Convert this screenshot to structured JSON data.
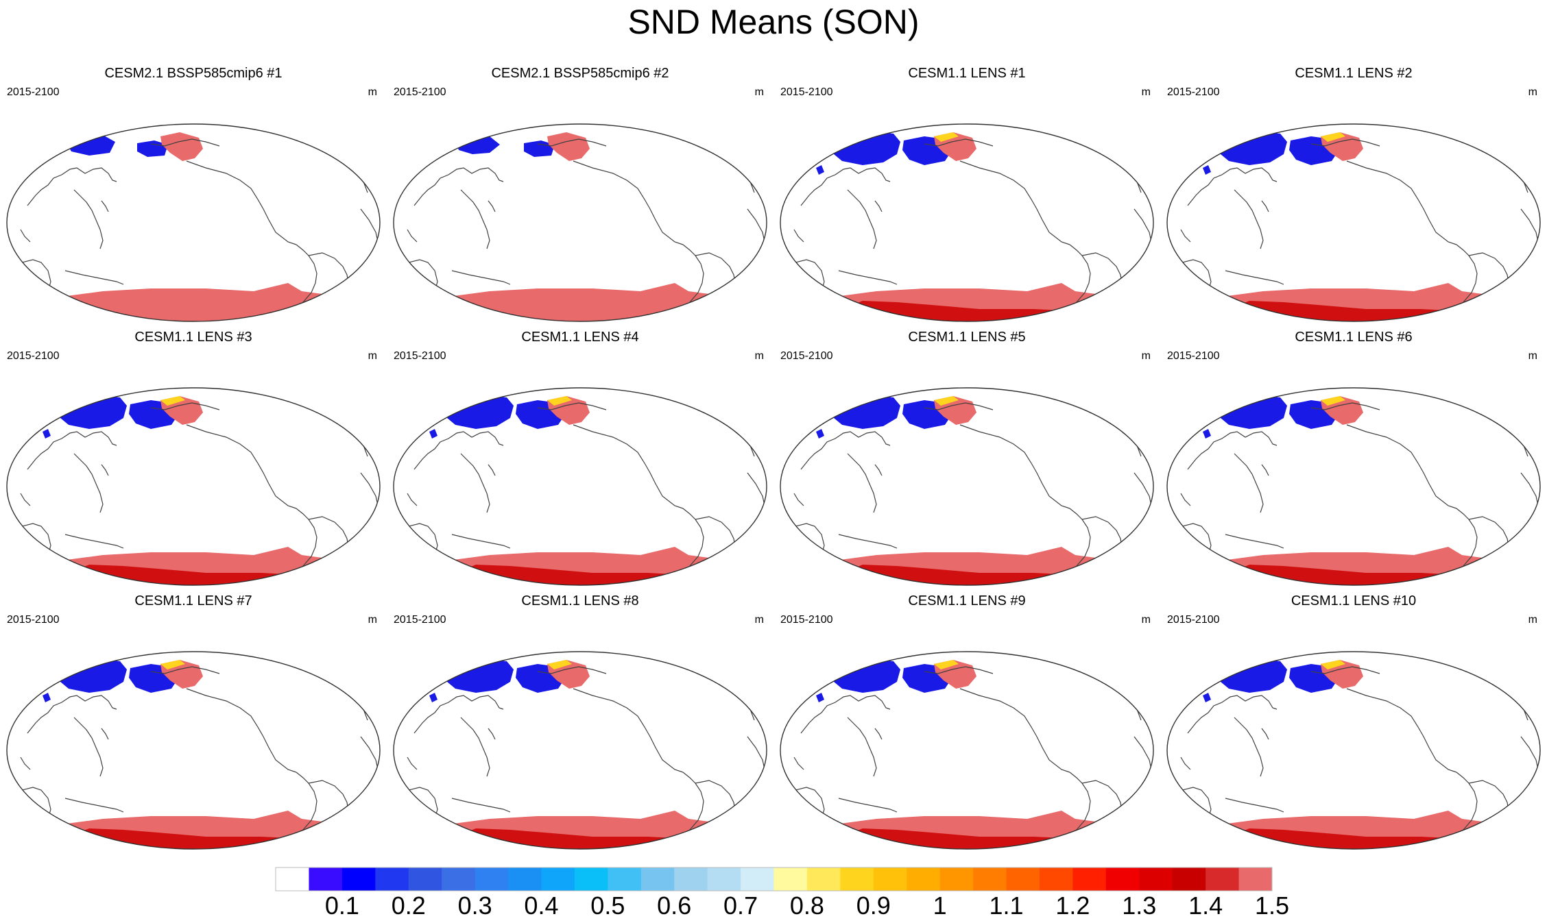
{
  "title": "SND Means (SON)",
  "panel_period": "2015-2100",
  "panel_units": "m",
  "panels": [
    {
      "title": "CESM2.1 BSSP585cmip6 #1",
      "antarctic_max": false,
      "arctic": "moderate"
    },
    {
      "title": "CESM2.1 BSSP585cmip6 #2",
      "antarctic_max": false,
      "arctic": "sparse"
    },
    {
      "title": "CESM1.1 LENS #1",
      "antarctic_max": true,
      "arctic": "broad"
    },
    {
      "title": "CESM1.1 LENS #2",
      "antarctic_max": true,
      "arctic": "broad"
    },
    {
      "title": "CESM1.1 LENS #3",
      "antarctic_max": true,
      "arctic": "broad"
    },
    {
      "title": "CESM1.1 LENS #4",
      "antarctic_max": true,
      "arctic": "broad"
    },
    {
      "title": "CESM1.1 LENS #5",
      "antarctic_max": true,
      "arctic": "broad"
    },
    {
      "title": "CESM1.1 LENS #6",
      "antarctic_max": true,
      "arctic": "broad"
    },
    {
      "title": "CESM1.1 LENS #7",
      "antarctic_max": true,
      "arctic": "broad"
    },
    {
      "title": "CESM1.1 LENS #8",
      "antarctic_max": true,
      "arctic": "broad"
    },
    {
      "title": "CESM1.1 LENS #9",
      "antarctic_max": true,
      "arctic": "broad"
    },
    {
      "title": "CESM1.1 LENS #10",
      "antarctic_max": true,
      "arctic": "broad"
    }
  ],
  "colorbar": {
    "colors": [
      "#ffffff",
      "#3a0cff",
      "#0000ff",
      "#1f38f0",
      "#3055e0",
      "#3a6fe6",
      "#2f80f0",
      "#1a90f5",
      "#0fa5fa",
      "#0abef8",
      "#40c0f5",
      "#78c4f0",
      "#9ed2ef",
      "#b4dcf2",
      "#d2ecf8",
      "#fffa9e",
      "#ffe85a",
      "#ffd41e",
      "#ffc10a",
      "#ffad00",
      "#ff9600",
      "#ff7d00",
      "#ff6400",
      "#ff4800",
      "#ff2000",
      "#f00000",
      "#dc0000",
      "#c80000",
      "#d82a2a",
      "#e86a6a"
    ],
    "labels": [
      "0.1",
      "0.2",
      "0.3",
      "0.4",
      "0.5",
      "0.6",
      "0.7",
      "0.8",
      "0.9",
      "1",
      "1.1",
      "1.2",
      "1.3",
      "1.4",
      "1.5"
    ]
  },
  "legend_colors": {
    "polar_high": "#e86a6a",
    "polar_max": "#d01010",
    "low": "#1a1ae6"
  }
}
